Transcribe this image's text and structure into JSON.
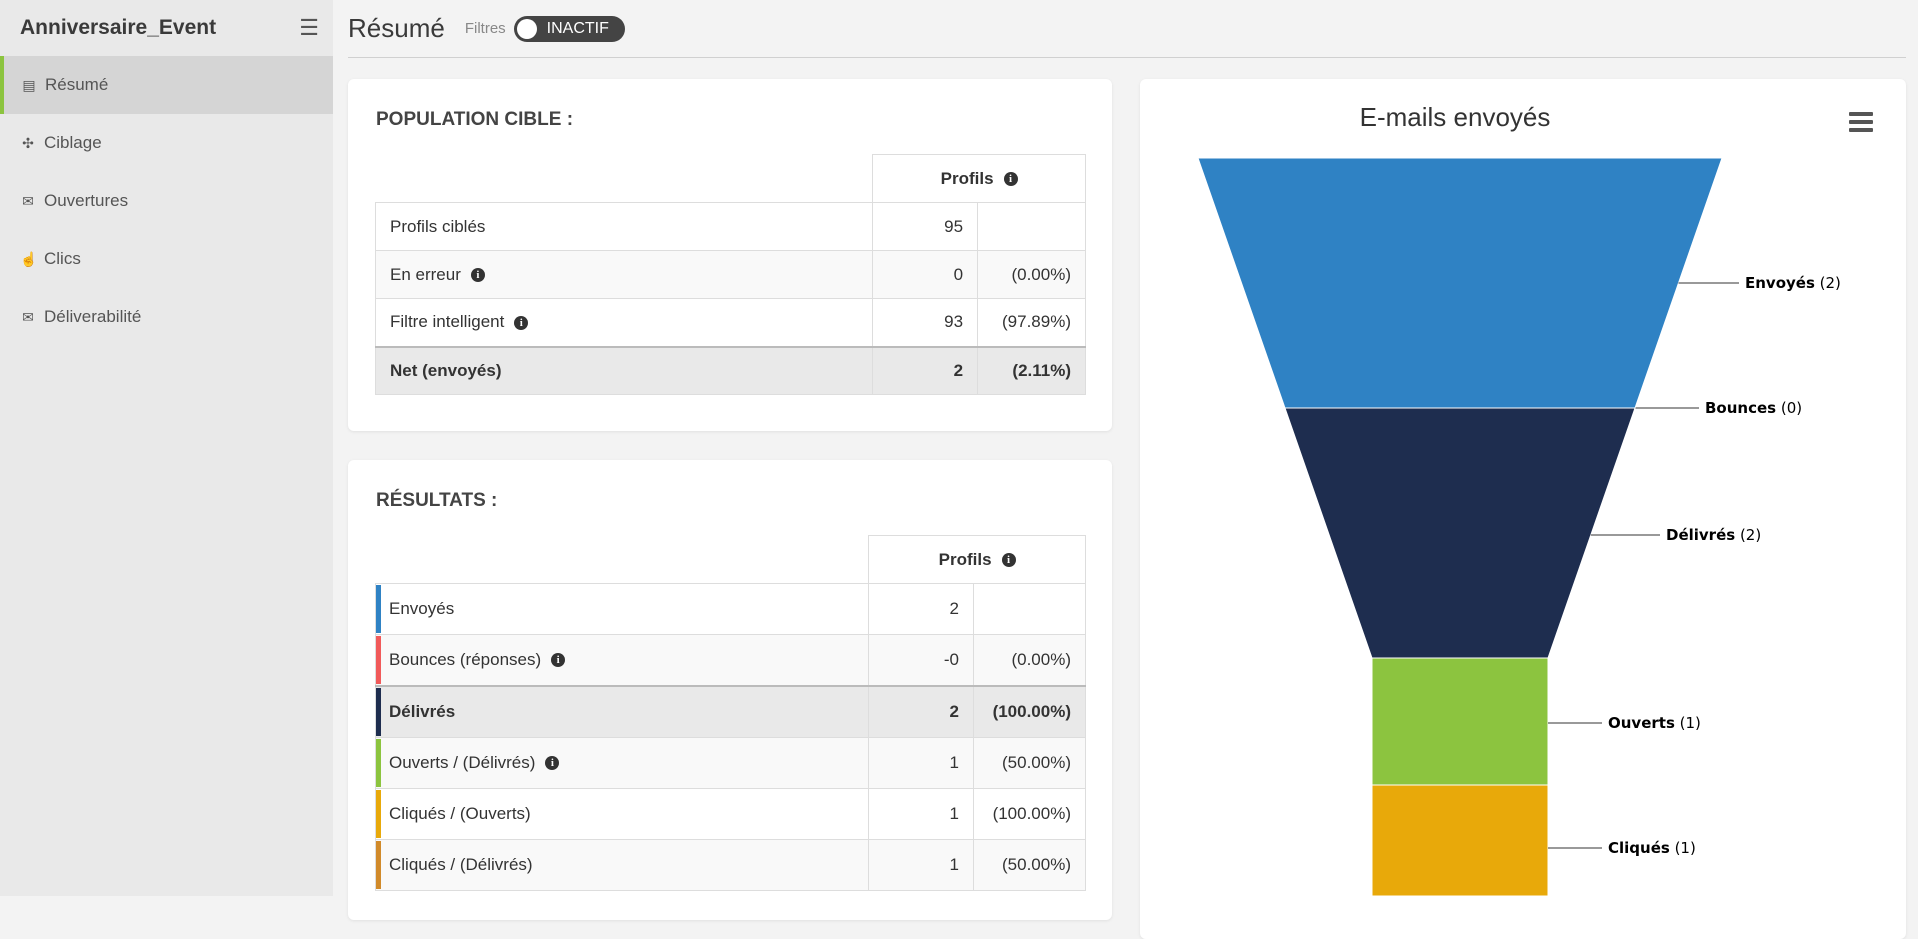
{
  "sidebar": {
    "title": "Anniversaire_Event",
    "items": [
      {
        "label": "Résumé",
        "icon": "list-icon"
      },
      {
        "label": "Ciblage",
        "icon": "crosshair-icon"
      },
      {
        "label": "Ouvertures",
        "icon": "envelope-open-icon"
      },
      {
        "label": "Clics",
        "icon": "pointer-icon"
      },
      {
        "label": "Déliverabilité",
        "icon": "envelope-icon"
      }
    ]
  },
  "topbar": {
    "title": "Résumé",
    "filters_label": "Filtres",
    "toggle_label": "INACTIF"
  },
  "population": {
    "title": "POPULATION CIBLE :",
    "header": "Profils",
    "rows": [
      {
        "label": "Profils ciblés",
        "value": "95",
        "pct": ""
      },
      {
        "label": "En erreur",
        "value": "0",
        "pct": "(0.00%)"
      },
      {
        "label": "Filtre intelligent",
        "value": "93",
        "pct": "(97.89%)"
      },
      {
        "label": "Net (envoyés)",
        "value": "2",
        "pct": "(2.11%)"
      }
    ]
  },
  "results": {
    "title": "RÉSULTATS :",
    "header": "Profils",
    "rows": [
      {
        "label": "Envoyés",
        "value": "2",
        "pct": "",
        "color": "#2f82c4"
      },
      {
        "label": "Bounces (réponses)",
        "value": "-0",
        "pct": "(0.00%)",
        "color": "#f15a5a"
      },
      {
        "label": "Délivrés",
        "value": "2",
        "pct": "(100.00%)",
        "color": "#1e2d4f"
      },
      {
        "label": "Ouverts / (Délivrés)",
        "value": "1",
        "pct": "(50.00%)",
        "color": "#8cc43f"
      },
      {
        "label": "Cliqués / (Ouverts)",
        "value": "1",
        "pct": "(100.00%)",
        "color": "#e8a90a"
      },
      {
        "label": "Cliqués / (Délivrés)",
        "value": "1",
        "pct": "(50.00%)",
        "color": "#d18a2a"
      }
    ]
  },
  "chart_data": {
    "type": "funnel",
    "title": "E-mails envoyés",
    "categories": [
      "Envoyés",
      "Bounces",
      "Délivrés",
      "Ouverts",
      "Cliqués"
    ],
    "values": [
      2,
      0,
      2,
      1,
      1
    ],
    "colors": [
      "#2f82c4",
      "#f15a5a",
      "#1e2d4f",
      "#8cc43f",
      "#e8a90a"
    ]
  }
}
